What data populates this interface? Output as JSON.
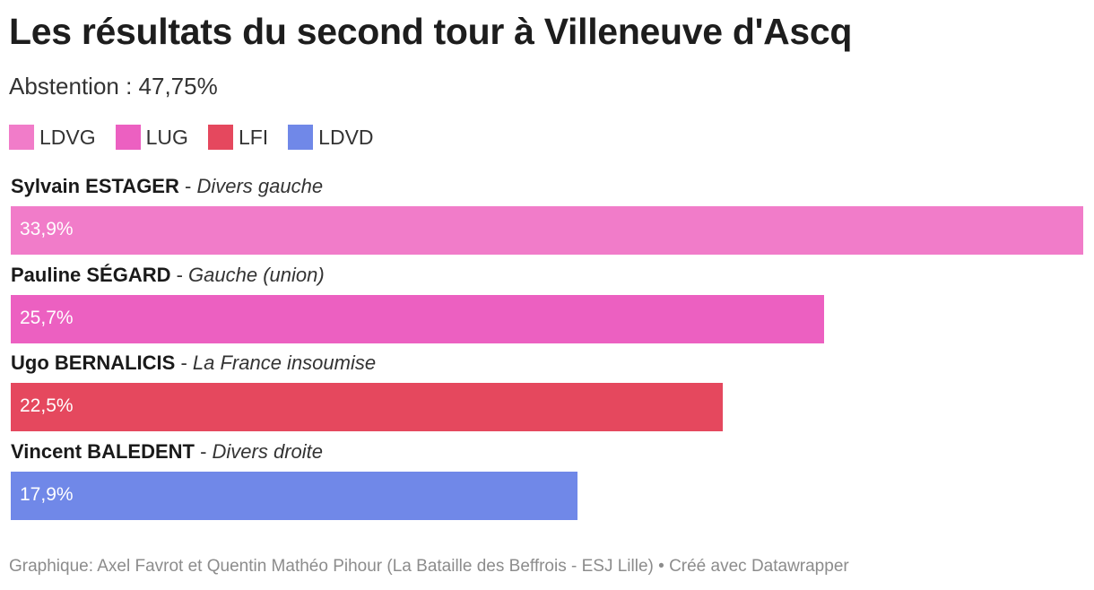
{
  "title": "Les résultats du second tour à Villeneuve d'Ascq",
  "subtitle": "Abstention : 47,75%",
  "legend": [
    {
      "label": "LDVG",
      "color": "#f17cc9"
    },
    {
      "label": "LUG",
      "color": "#ec60c1"
    },
    {
      "label": "LFI",
      "color": "#e5485e"
    },
    {
      "label": "LDVD",
      "color": "#7088e8"
    }
  ],
  "chart_data": {
    "type": "bar",
    "orientation": "horizontal",
    "xlim": [
      0,
      33.9
    ],
    "grid": false,
    "legend_position": "top-left",
    "rows": [
      {
        "candidate": "Sylvain ESTAGER",
        "party": "Divers gauche",
        "value": 33.9,
        "label": "33,9%",
        "color": "#f17cc9"
      },
      {
        "candidate": "Pauline SÉGARD",
        "party": "Gauche (union)",
        "value": 25.7,
        "label": "25,7%",
        "color": "#ec60c1"
      },
      {
        "candidate": "Ugo BERNALICIS",
        "party": "La France insoumise",
        "value": 22.5,
        "label": "22,5%",
        "color": "#e5485e"
      },
      {
        "candidate": "Vincent BALEDENT",
        "party": "Divers droite",
        "value": 17.9,
        "label": "17,9%",
        "color": "#7088e8"
      }
    ]
  },
  "footer": "Graphique: Axel Favrot et Quentin Mathéo Pihour (La Bataille des Beffrois - ESJ Lille) • Créé avec Datawrapper"
}
